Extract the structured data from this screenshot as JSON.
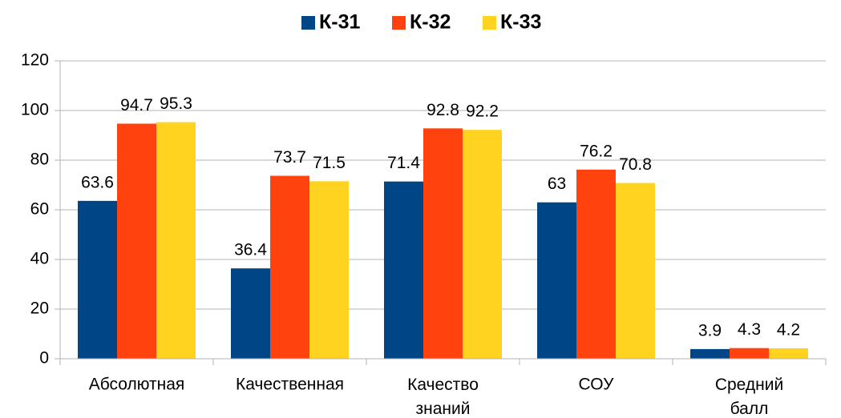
{
  "chart_data": {
    "type": "bar",
    "categories": [
      "Абсолютная",
      "Качественная",
      "Качество знаний",
      "СОУ",
      "Средний балл"
    ],
    "series": [
      {
        "name": "К-31",
        "color": "#004586",
        "values": [
          63.6,
          36.4,
          71.4,
          63,
          3.9
        ]
      },
      {
        "name": "К-32",
        "color": "#ff420e",
        "values": [
          94.7,
          73.7,
          92.8,
          76.2,
          4.3
        ]
      },
      {
        "name": "К-33",
        "color": "#ffd320",
        "values": [
          95.3,
          71.5,
          92.2,
          70.8,
          4.2
        ]
      }
    ],
    "ylim": [
      0,
      120
    ],
    "yticks": [
      0,
      20,
      40,
      60,
      80,
      100,
      120
    ],
    "grid": true,
    "legend": "top"
  }
}
